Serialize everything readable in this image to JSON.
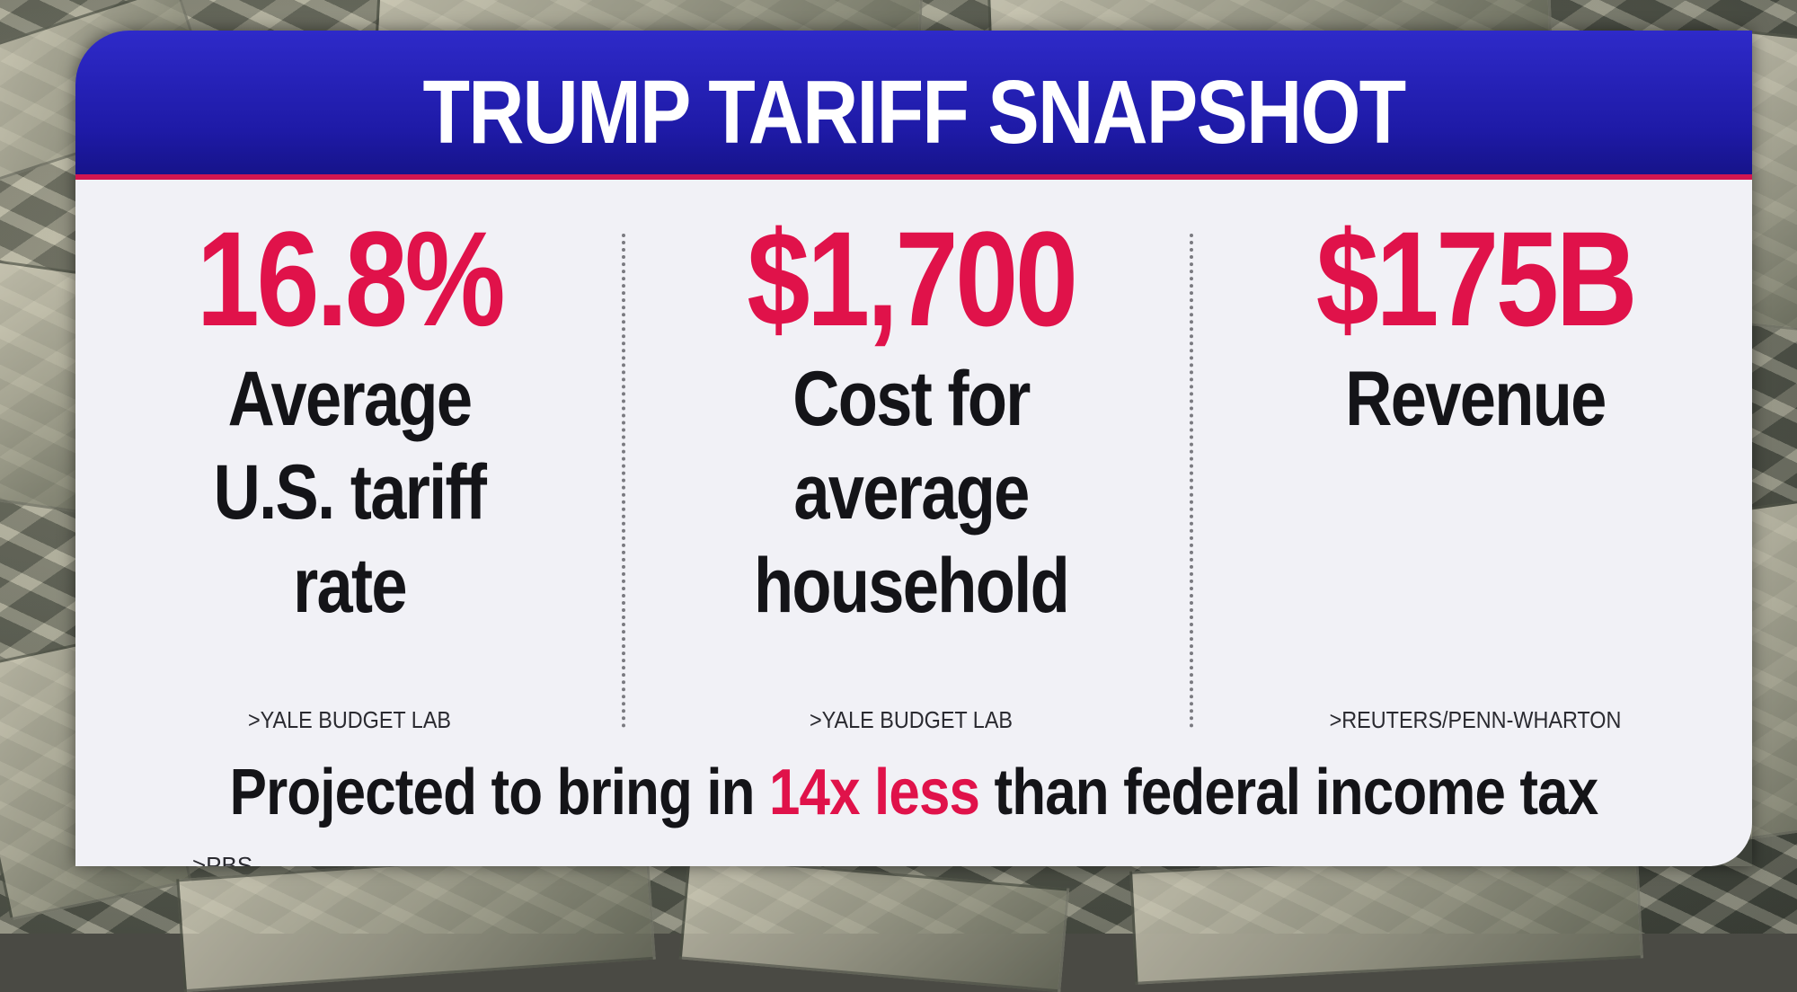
{
  "title": "TRUMP TARIFF SNAPSHOT",
  "stats": [
    {
      "value": "16.8%",
      "label_lines": [
        "Average",
        "U.S. tariff",
        "rate"
      ],
      "source": ">YALE BUDGET LAB"
    },
    {
      "value": "$1,700",
      "label_lines": [
        "Cost for",
        "average",
        "household"
      ],
      "source": ">YALE BUDGET LAB"
    },
    {
      "value": "$175B",
      "label_lines": [
        "Revenue"
      ],
      "source": ">REUTERS/PENN-WHARTON"
    }
  ],
  "footer": {
    "before": "Projected to bring in ",
    "highlight": "14x less",
    "after": " than federal income tax",
    "source": ">PBS"
  },
  "colors": {
    "header": "#2e2ac9",
    "accent": "#e0124a",
    "card": "#f1f1f6",
    "text": "#141418"
  }
}
